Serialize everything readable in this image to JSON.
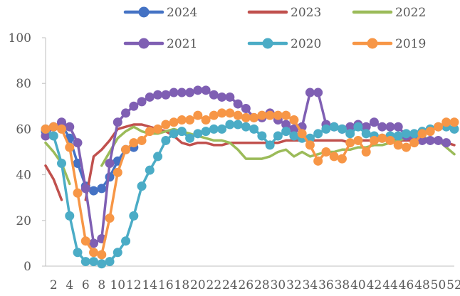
{
  "chart_data": {
    "type": "line",
    "title": "",
    "xlabel": "",
    "ylabel": "",
    "x": [
      1,
      2,
      3,
      4,
      5,
      6,
      7,
      8,
      9,
      10,
      11,
      12,
      13,
      14,
      15,
      16,
      17,
      18,
      19,
      20,
      21,
      22,
      23,
      24,
      25,
      26,
      27,
      28,
      29,
      30,
      31,
      32,
      33,
      34,
      35,
      36,
      37,
      38,
      39,
      40,
      41,
      42,
      43,
      44,
      45,
      46,
      47,
      48,
      49,
      50,
      51,
      52
    ],
    "x_tick_labels": [
      "2",
      "4",
      "6",
      "8",
      "10",
      "12",
      "14",
      "16",
      "18",
      "20",
      "22",
      "24",
      "26",
      "28",
      "30",
      "32",
      "34",
      "36",
      "38",
      "40",
      "42",
      "44",
      "46",
      "48",
      "50",
      "52"
    ],
    "ylim": [
      0,
      100
    ],
    "y_ticks": [
      0,
      20,
      40,
      60,
      80,
      100
    ],
    "grid": false,
    "legend_position": "top",
    "series": [
      {
        "name": "2024",
        "color": "#4472c4",
        "marker": true,
        "values": [
          59,
          61,
          62,
          56,
          45,
          35,
          33,
          34,
          39,
          46,
          51,
          52,
          null,
          null,
          null,
          null,
          null,
          null,
          null,
          null,
          null,
          null,
          null,
          null,
          null,
          null,
          null,
          null,
          null,
          null,
          null,
          null,
          null,
          null,
          null,
          null,
          null,
          null,
          null,
          null,
          null,
          null,
          null,
          null,
          null,
          null,
          null,
          null,
          null,
          null,
          null,
          null
        ]
      },
      {
        "name": "2023",
        "color": "#c0504d",
        "marker": false,
        "values": [
          44,
          38,
          29,
          null,
          null,
          29,
          48,
          51,
          55,
          60,
          61,
          62,
          62,
          61,
          60,
          59,
          57,
          54,
          53,
          54,
          54,
          53,
          53,
          54,
          54,
          54,
          54,
          54,
          54,
          54,
          55,
          55,
          55,
          55,
          55,
          55,
          55,
          55,
          54,
          55,
          55,
          55,
          55,
          55,
          55,
          55,
          55,
          55,
          55,
          55,
          54,
          53
        ]
      },
      {
        "name": "2022",
        "color": "#9bbb59",
        "marker": false,
        "values": [
          54,
          50,
          45,
          36,
          null,
          null,
          null,
          44,
          50,
          56,
          59,
          61,
          59,
          58,
          58,
          59,
          60,
          59,
          58,
          57,
          56,
          55,
          55,
          54,
          51,
          47,
          47,
          47,
          48,
          50,
          51,
          48,
          50,
          48,
          49,
          50,
          50,
          51,
          51,
          52,
          52,
          53,
          53,
          54,
          55,
          56,
          56,
          56,
          56,
          55,
          52,
          49
        ]
      },
      {
        "name": "2021",
        "color": "#7f5fb3",
        "marker": true,
        "values": [
          57,
          61,
          63,
          61,
          54,
          34,
          10,
          12,
          45,
          63,
          67,
          70,
          72,
          74,
          75,
          75,
          76,
          76,
          76,
          77,
          77,
          75,
          74,
          74,
          71,
          69,
          65,
          65,
          67,
          64,
          62,
          60,
          61,
          76,
          76,
          62,
          61,
          60,
          61,
          62,
          61,
          63,
          61,
          61,
          61,
          57,
          56,
          55,
          55,
          55,
          54,
          null
        ]
      },
      {
        "name": "2020",
        "color": "#4bacc6",
        "marker": true,
        "values": [
          60,
          57,
          45,
          22,
          6,
          2,
          2,
          1,
          2,
          6,
          11,
          22,
          35,
          42,
          48,
          55,
          58,
          59,
          56,
          58,
          59,
          60,
          60,
          62,
          62,
          61,
          60,
          57,
          53,
          57,
          59,
          57,
          56,
          56,
          58,
          60,
          61,
          60,
          58,
          61,
          58,
          57,
          56,
          57,
          57,
          58,
          58,
          59,
          60,
          61,
          61,
          60
        ]
      },
      {
        "name": "2019",
        "color": "#f79646",
        "marker": true,
        "values": [
          60,
          61,
          60,
          52,
          32,
          11,
          6,
          5,
          21,
          41,
          51,
          54,
          55,
          59,
          60,
          62,
          63,
          64,
          64,
          66,
          64,
          66,
          67,
          67,
          66,
          65,
          65,
          66,
          66,
          66,
          66,
          64,
          58,
          53,
          46,
          50,
          48,
          47,
          54,
          55,
          50,
          55,
          56,
          55,
          53,
          52,
          54,
          58,
          59,
          61,
          63,
          63
        ]
      }
    ]
  }
}
